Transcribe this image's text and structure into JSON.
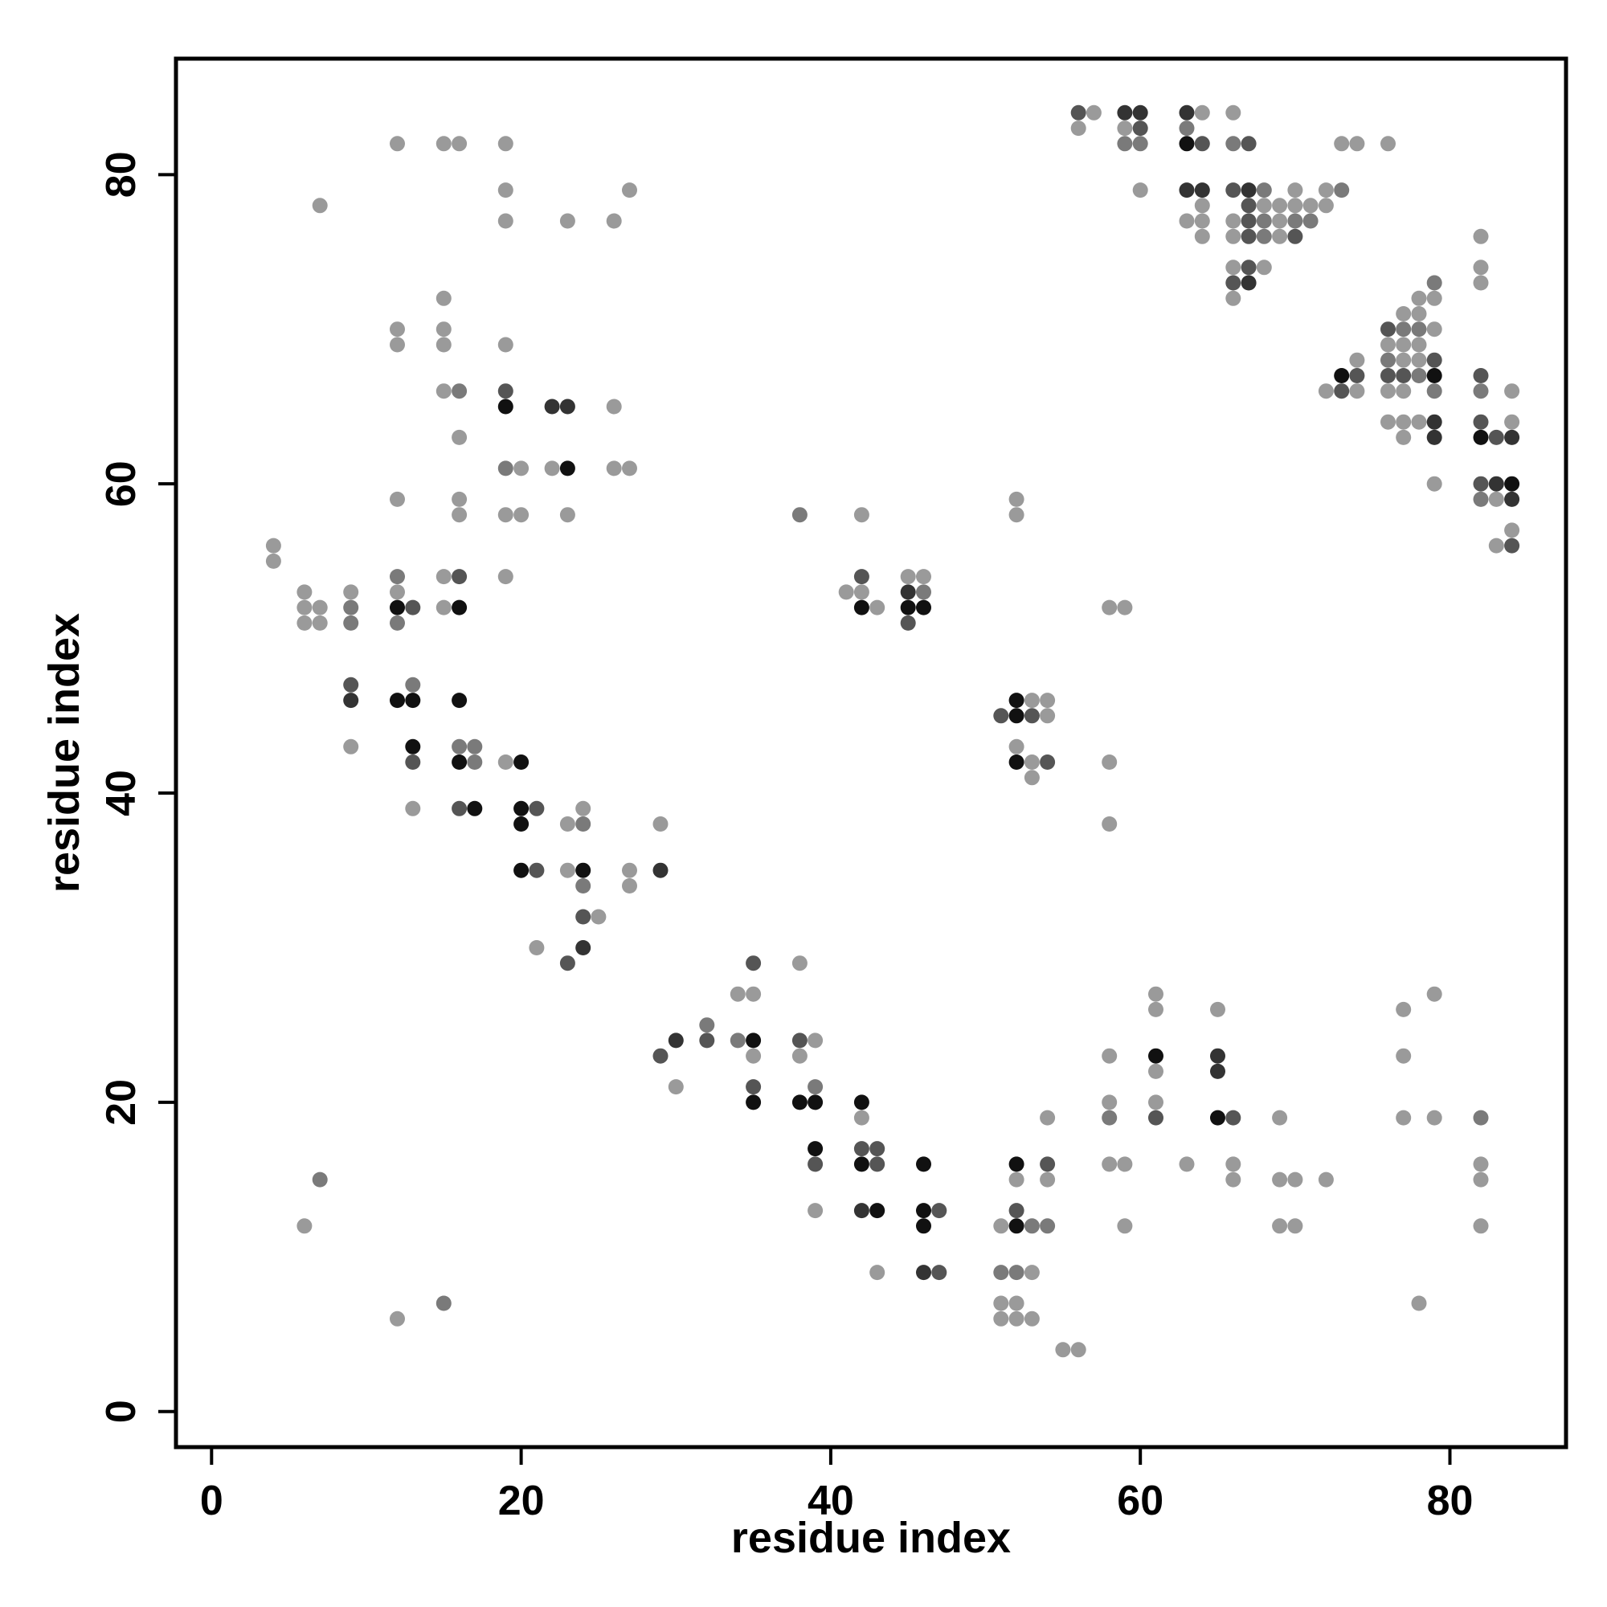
{
  "chart_data": {
    "type": "scatter",
    "title": "",
    "xlabel": "residue index",
    "ylabel": "residue index",
    "xlim": [
      -2.3,
      87.5
    ],
    "ylim": [
      -2.3,
      87.5
    ],
    "xticks": [
      0,
      20,
      40,
      60,
      80
    ],
    "yticks": [
      0,
      20,
      40,
      60,
      80
    ],
    "xtick_labels": [
      "0",
      "20",
      "40",
      "60",
      "80"
    ],
    "ytick_labels": [
      "0",
      "20",
      "40",
      "60",
      "80"
    ],
    "grid": false,
    "legend": "none",
    "point_shades": {
      "1": "#9a9a9a",
      "2": "#7a7a7a",
      "3": "#555555",
      "4": "#333333",
      "5": "#111111"
    },
    "points": [
      [
        4,
        56,
        1
      ],
      [
        4,
        55,
        1
      ],
      [
        6,
        53,
        1
      ],
      [
        6,
        52,
        1
      ],
      [
        6,
        51,
        1
      ],
      [
        7,
        52,
        1
      ],
      [
        7,
        51,
        1
      ],
      [
        7,
        78,
        1
      ],
      [
        7,
        15,
        2
      ],
      [
        6,
        12,
        1
      ],
      [
        9,
        53,
        1
      ],
      [
        9,
        52,
        2
      ],
      [
        9,
        51,
        2
      ],
      [
        9,
        47,
        3
      ],
      [
        9,
        46,
        4
      ],
      [
        9,
        43,
        1
      ],
      [
        12,
        82,
        1
      ],
      [
        12,
        70,
        1
      ],
      [
        12,
        69,
        1
      ],
      [
        12,
        59,
        1
      ],
      [
        12,
        54,
        2
      ],
      [
        12,
        53,
        1
      ],
      [
        12,
        52,
        5
      ],
      [
        12,
        51,
        2
      ],
      [
        12,
        46,
        5
      ],
      [
        12,
        6,
        1
      ],
      [
        13,
        52,
        3
      ],
      [
        13,
        47,
        2
      ],
      [
        13,
        46,
        5
      ],
      [
        13,
        43,
        5
      ],
      [
        13,
        42,
        3
      ],
      [
        13,
        39,
        1
      ],
      [
        15,
        82,
        1
      ],
      [
        15,
        72,
        1
      ],
      [
        15,
        70,
        1
      ],
      [
        15,
        69,
        1
      ],
      [
        15,
        66,
        1
      ],
      [
        15,
        54,
        1
      ],
      [
        15,
        52,
        1
      ],
      [
        15,
        7,
        2
      ],
      [
        16,
        82,
        1
      ],
      [
        16,
        66,
        2
      ],
      [
        16,
        63,
        1
      ],
      [
        16,
        59,
        1
      ],
      [
        16,
        58,
        1
      ],
      [
        16,
        54,
        3
      ],
      [
        16,
        52,
        5
      ],
      [
        16,
        46,
        5
      ],
      [
        16,
        43,
        2
      ],
      [
        16,
        42,
        5
      ],
      [
        16,
        39,
        3
      ],
      [
        17,
        43,
        2
      ],
      [
        17,
        42,
        2
      ],
      [
        17,
        39,
        5
      ],
      [
        19,
        82,
        1
      ],
      [
        19,
        79,
        1
      ],
      [
        19,
        77,
        1
      ],
      [
        19,
        69,
        1
      ],
      [
        19,
        66,
        3
      ],
      [
        19,
        65,
        5
      ],
      [
        19,
        61,
        2
      ],
      [
        19,
        58,
        1
      ],
      [
        19,
        54,
        1
      ],
      [
        19,
        42,
        1
      ],
      [
        20,
        61,
        1
      ],
      [
        20,
        58,
        1
      ],
      [
        20,
        42,
        5
      ],
      [
        20,
        39,
        5
      ],
      [
        20,
        38,
        5
      ],
      [
        20,
        35,
        5
      ],
      [
        21,
        39,
        3
      ],
      [
        21,
        35,
        3
      ],
      [
        21,
        30,
        1
      ],
      [
        22,
        65,
        4
      ],
      [
        22,
        61,
        1
      ],
      [
        23,
        77,
        1
      ],
      [
        23,
        65,
        4
      ],
      [
        23,
        61,
        5
      ],
      [
        23,
        58,
        1
      ],
      [
        23,
        38,
        1
      ],
      [
        23,
        35,
        1
      ],
      [
        23,
        29,
        3
      ],
      [
        24,
        39,
        1
      ],
      [
        24,
        38,
        2
      ],
      [
        24,
        35,
        5
      ],
      [
        24,
        34,
        2
      ],
      [
        24,
        32,
        3
      ],
      [
        24,
        30,
        4
      ],
      [
        25,
        32,
        1
      ],
      [
        26,
        77,
        1
      ],
      [
        26,
        65,
        1
      ],
      [
        26,
        61,
        1
      ],
      [
        27,
        79,
        1
      ],
      [
        27,
        61,
        1
      ],
      [
        27,
        35,
        1
      ],
      [
        27,
        34,
        1
      ],
      [
        29,
        38,
        1
      ],
      [
        29,
        35,
        4
      ],
      [
        29,
        23,
        3
      ],
      [
        30,
        24,
        4
      ],
      [
        30,
        21,
        1
      ],
      [
        32,
        25,
        2
      ],
      [
        32,
        24,
        3
      ],
      [
        34,
        27,
        1
      ],
      [
        34,
        24,
        2
      ],
      [
        35,
        29,
        3
      ],
      [
        35,
        27,
        1
      ],
      [
        35,
        24,
        5
      ],
      [
        35,
        23,
        1
      ],
      [
        35,
        21,
        3
      ],
      [
        35,
        20,
        5
      ],
      [
        38,
        58,
        2
      ],
      [
        38,
        29,
        1
      ],
      [
        38,
        24,
        3
      ],
      [
        38,
        23,
        1
      ],
      [
        38,
        20,
        5
      ],
      [
        39,
        24,
        1
      ],
      [
        39,
        21,
        2
      ],
      [
        39,
        20,
        5
      ],
      [
        39,
        17,
        5
      ],
      [
        39,
        16,
        3
      ],
      [
        39,
        13,
        1
      ],
      [
        41,
        53,
        1
      ],
      [
        42,
        58,
        1
      ],
      [
        42,
        54,
        3
      ],
      [
        42,
        53,
        1
      ],
      [
        42,
        52,
        5
      ],
      [
        42,
        20,
        5
      ],
      [
        42,
        19,
        1
      ],
      [
        42,
        17,
        3
      ],
      [
        42,
        16,
        5
      ],
      [
        42,
        13,
        4
      ],
      [
        43,
        52,
        1
      ],
      [
        43,
        17,
        3
      ],
      [
        43,
        16,
        3
      ],
      [
        43,
        13,
        5
      ],
      [
        43,
        9,
        1
      ],
      [
        45,
        54,
        1
      ],
      [
        45,
        53,
        4
      ],
      [
        45,
        52,
        5
      ],
      [
        45,
        51,
        3
      ],
      [
        46,
        54,
        1
      ],
      [
        46,
        53,
        2
      ],
      [
        46,
        52,
        5
      ],
      [
        46,
        16,
        5
      ],
      [
        46,
        13,
        5
      ],
      [
        46,
        12,
        5
      ],
      [
        46,
        9,
        4
      ],
      [
        47,
        13,
        3
      ],
      [
        47,
        9,
        3
      ],
      [
        51,
        45,
        3
      ],
      [
        51,
        12,
        1
      ],
      [
        51,
        9,
        2
      ],
      [
        51,
        7,
        1
      ],
      [
        51,
        6,
        1
      ],
      [
        52,
        59,
        1
      ],
      [
        52,
        58,
        1
      ],
      [
        52,
        46,
        5
      ],
      [
        52,
        45,
        5
      ],
      [
        52,
        43,
        1
      ],
      [
        52,
        42,
        5
      ],
      [
        52,
        16,
        5
      ],
      [
        52,
        15,
        1
      ],
      [
        52,
        13,
        3
      ],
      [
        52,
        12,
        5
      ],
      [
        52,
        9,
        2
      ],
      [
        52,
        7,
        1
      ],
      [
        52,
        6,
        1
      ],
      [
        53,
        46,
        1
      ],
      [
        53,
        45,
        3
      ],
      [
        53,
        42,
        1
      ],
      [
        53,
        41,
        1
      ],
      [
        53,
        12,
        2
      ],
      [
        53,
        9,
        1
      ],
      [
        53,
        6,
        1
      ],
      [
        54,
        46,
        1
      ],
      [
        54,
        45,
        1
      ],
      [
        54,
        42,
        3
      ],
      [
        54,
        19,
        1
      ],
      [
        54,
        16,
        3
      ],
      [
        54,
        15,
        1
      ],
      [
        54,
        12,
        2
      ],
      [
        55,
        4,
        1
      ],
      [
        56,
        84,
        3
      ],
      [
        56,
        83,
        1
      ],
      [
        56,
        4,
        1
      ],
      [
        57,
        84,
        1
      ],
      [
        58,
        52,
        1
      ],
      [
        58,
        42,
        1
      ],
      [
        58,
        38,
        1
      ],
      [
        58,
        23,
        1
      ],
      [
        58,
        20,
        1
      ],
      [
        58,
        19,
        2
      ],
      [
        58,
        16,
        1
      ],
      [
        59,
        84,
        4
      ],
      [
        59,
        83,
        1
      ],
      [
        59,
        82,
        2
      ],
      [
        59,
        52,
        1
      ],
      [
        59,
        16,
        1
      ],
      [
        59,
        12,
        1
      ],
      [
        60,
        84,
        4
      ],
      [
        60,
        83,
        3
      ],
      [
        60,
        82,
        2
      ],
      [
        60,
        79,
        1
      ],
      [
        61,
        27,
        1
      ],
      [
        61,
        26,
        1
      ],
      [
        61,
        23,
        5
      ],
      [
        61,
        22,
        1
      ],
      [
        61,
        20,
        1
      ],
      [
        61,
        19,
        3
      ],
      [
        63,
        84,
        4
      ],
      [
        63,
        83,
        2
      ],
      [
        63,
        82,
        5
      ],
      [
        63,
        79,
        4
      ],
      [
        63,
        77,
        1
      ],
      [
        63,
        16,
        1
      ],
      [
        64,
        84,
        1
      ],
      [
        64,
        82,
        3
      ],
      [
        64,
        79,
        4
      ],
      [
        64,
        78,
        1
      ],
      [
        64,
        77,
        1
      ],
      [
        64,
        76,
        1
      ],
      [
        65,
        26,
        1
      ],
      [
        65,
        23,
        4
      ],
      [
        65,
        22,
        4
      ],
      [
        65,
        19,
        5
      ],
      [
        66,
        84,
        1
      ],
      [
        66,
        82,
        2
      ],
      [
        66,
        79,
        3
      ],
      [
        66,
        77,
        1
      ],
      [
        66,
        76,
        1
      ],
      [
        66,
        74,
        1
      ],
      [
        66,
        73,
        3
      ],
      [
        66,
        72,
        1
      ],
      [
        66,
        19,
        3
      ],
      [
        66,
        16,
        1
      ],
      [
        66,
        15,
        1
      ],
      [
        67,
        82,
        3
      ],
      [
        67,
        79,
        4
      ],
      [
        67,
        78,
        3
      ],
      [
        67,
        77,
        3
      ],
      [
        67,
        76,
        3
      ],
      [
        67,
        74,
        3
      ],
      [
        67,
        73,
        4
      ],
      [
        68,
        79,
        2
      ],
      [
        68,
        78,
        1
      ],
      [
        68,
        77,
        2
      ],
      [
        68,
        76,
        2
      ],
      [
        68,
        74,
        1
      ],
      [
        69,
        78,
        1
      ],
      [
        69,
        77,
        1
      ],
      [
        69,
        76,
        1
      ],
      [
        69,
        19,
        1
      ],
      [
        69,
        15,
        1
      ],
      [
        69,
        12,
        1
      ],
      [
        70,
        79,
        1
      ],
      [
        70,
        78,
        1
      ],
      [
        70,
        77,
        2
      ],
      [
        70,
        76,
        3
      ],
      [
        70,
        15,
        1
      ],
      [
        70,
        12,
        1
      ],
      [
        71,
        78,
        1
      ],
      [
        71,
        77,
        2
      ],
      [
        72,
        79,
        1
      ],
      [
        72,
        78,
        1
      ],
      [
        72,
        66,
        1
      ],
      [
        72,
        15,
        1
      ],
      [
        73,
        82,
        1
      ],
      [
        73,
        79,
        2
      ],
      [
        73,
        67,
        5
      ],
      [
        73,
        66,
        3
      ],
      [
        74,
        82,
        1
      ],
      [
        74,
        68,
        1
      ],
      [
        74,
        67,
        3
      ],
      [
        74,
        66,
        1
      ],
      [
        76,
        82,
        1
      ],
      [
        76,
        70,
        3
      ],
      [
        76,
        69,
        1
      ],
      [
        76,
        68,
        2
      ],
      [
        76,
        67,
        3
      ],
      [
        76,
        66,
        1
      ],
      [
        76,
        64,
        1
      ],
      [
        77,
        71,
        1
      ],
      [
        77,
        70,
        2
      ],
      [
        77,
        69,
        1
      ],
      [
        77,
        68,
        1
      ],
      [
        77,
        67,
        3
      ],
      [
        77,
        66,
        1
      ],
      [
        77,
        64,
        1
      ],
      [
        77,
        63,
        1
      ],
      [
        77,
        26,
        1
      ],
      [
        77,
        23,
        1
      ],
      [
        77,
        19,
        1
      ],
      [
        78,
        72,
        1
      ],
      [
        78,
        71,
        1
      ],
      [
        78,
        70,
        2
      ],
      [
        78,
        69,
        1
      ],
      [
        78,
        68,
        1
      ],
      [
        78,
        67,
        2
      ],
      [
        78,
        64,
        1
      ],
      [
        78,
        7,
        1
      ],
      [
        79,
        73,
        2
      ],
      [
        79,
        72,
        1
      ],
      [
        79,
        70,
        1
      ],
      [
        79,
        68,
        3
      ],
      [
        79,
        67,
        5
      ],
      [
        79,
        66,
        2
      ],
      [
        79,
        64,
        4
      ],
      [
        79,
        63,
        4
      ],
      [
        79,
        60,
        1
      ],
      [
        79,
        27,
        1
      ],
      [
        79,
        19,
        1
      ],
      [
        82,
        76,
        1
      ],
      [
        82,
        74,
        1
      ],
      [
        82,
        73,
        1
      ],
      [
        82,
        67,
        3
      ],
      [
        82,
        66,
        2
      ],
      [
        82,
        64,
        3
      ],
      [
        82,
        63,
        5
      ],
      [
        82,
        60,
        3
      ],
      [
        82,
        59,
        2
      ],
      [
        82,
        19,
        2
      ],
      [
        82,
        16,
        1
      ],
      [
        82,
        15,
        1
      ],
      [
        82,
        12,
        1
      ],
      [
        83,
        63,
        3
      ],
      [
        83,
        60,
        4
      ],
      [
        83,
        59,
        1
      ],
      [
        83,
        56,
        1
      ],
      [
        84,
        66,
        1
      ],
      [
        84,
        64,
        1
      ],
      [
        84,
        63,
        4
      ],
      [
        84,
        60,
        5
      ],
      [
        84,
        59,
        4
      ],
      [
        84,
        57,
        1
      ],
      [
        84,
        56,
        3
      ]
    ]
  }
}
